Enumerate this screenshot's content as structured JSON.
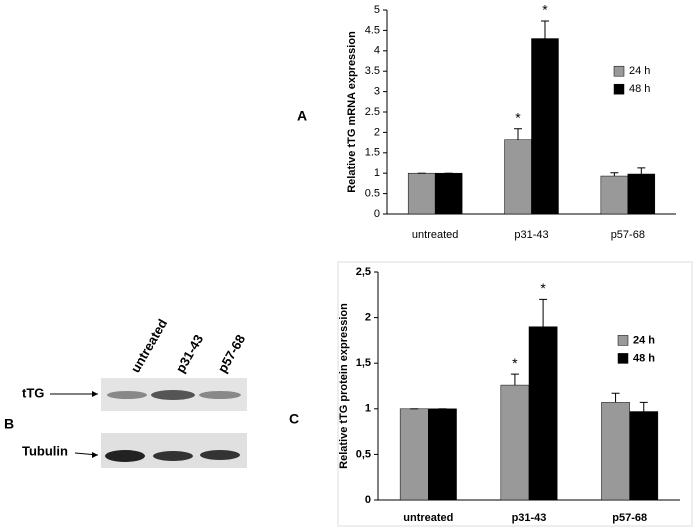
{
  "panel_labels": [
    "A",
    "B",
    "C"
  ],
  "blot": {
    "lanes": [
      "untreated",
      "p31-43",
      "p57-68"
    ],
    "rows": [
      "tTG",
      "Tubulin"
    ]
  },
  "chart_data": [
    {
      "type": "bar",
      "ylabel": "Relative tTG mRNA expression",
      "categories": [
        "untreated",
        "p31-43",
        "p57-68"
      ],
      "series": [
        {
          "name": "24 h",
          "color": "#999999",
          "values": [
            1,
            1.82,
            0.93
          ],
          "errors": [
            0,
            0.27,
            0.08
          ]
        },
        {
          "name": "48 h",
          "color": "#000000",
          "values": [
            1,
            4.3,
            0.98
          ],
          "errors": [
            0,
            0.43,
            0.15
          ]
        }
      ],
      "annotations": [
        "*",
        "*"
      ],
      "ylim": [
        0,
        5
      ],
      "yticks": [
        0,
        0.5,
        1,
        1.5,
        2,
        2.5,
        3,
        3.5,
        4,
        4.5,
        5
      ],
      "legend": "upper right"
    },
    {
      "type": "bar",
      "ylabel": "Relative tTG protein expression",
      "categories": [
        "untreated",
        "p31-43",
        "p57-68"
      ],
      "series": [
        {
          "name": "24 h",
          "color": "#999999",
          "values": [
            1,
            1.26,
            1.07
          ],
          "errors": [
            0,
            0.12,
            0.1
          ]
        },
        {
          "name": "48 h",
          "color": "#000000",
          "values": [
            1,
            1.9,
            0.97
          ],
          "errors": [
            0,
            0.3,
            0.1
          ]
        }
      ],
      "annotations": [
        "*",
        "*"
      ],
      "ylim": [
        0,
        2.5
      ],
      "yticks": [
        0,
        {
          "value": 0.5,
          "label": "0,5"
        },
        1,
        {
          "value": 1.5,
          "label": "1,5"
        },
        2,
        {
          "value": 2.5,
          "label": "2,5"
        }
      ],
      "legend": "upper right"
    }
  ]
}
